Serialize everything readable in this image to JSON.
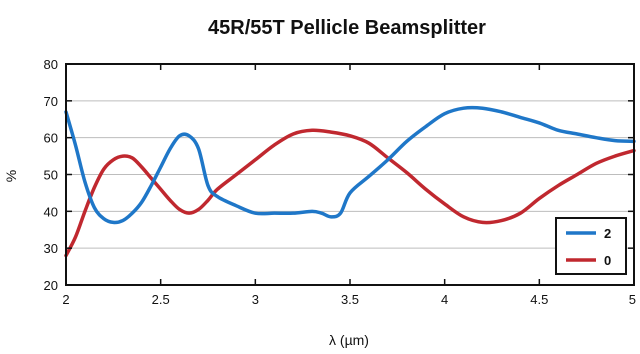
{
  "chart_data": {
    "type": "line",
    "title": "45R/55T Pellicle Beamsplitter",
    "xlabel": "λ (µm)",
    "ylabel": "%",
    "xlim": [
      2,
      5
    ],
    "ylim": [
      20,
      80
    ],
    "xticks": [
      "2",
      "2.5",
      "3",
      "3.5",
      "4",
      "4.5",
      "5"
    ],
    "xtick_values": [
      2,
      2.5,
      3,
      3.5,
      4,
      4.5,
      5
    ],
    "yticks": [
      "20",
      "30",
      "40",
      "50",
      "60",
      "70",
      "80"
    ],
    "ytick_values": [
      20,
      30,
      40,
      50,
      60,
      70,
      80
    ],
    "grid": "horizontal",
    "legend_position": "bottom-right",
    "series": [
      {
        "name": "2",
        "color": "#1f77c8",
        "x": [
          2.0,
          2.05,
          2.1,
          2.15,
          2.2,
          2.25,
          2.3,
          2.35,
          2.4,
          2.45,
          2.5,
          2.55,
          2.6,
          2.65,
          2.7,
          2.75,
          2.8,
          2.9,
          3.0,
          3.1,
          3.2,
          3.3,
          3.35,
          3.4,
          3.45,
          3.5,
          3.6,
          3.7,
          3.8,
          3.9,
          4.0,
          4.1,
          4.2,
          4.3,
          4.4,
          4.5,
          4.6,
          4.7,
          4.8,
          4.9,
          5.0
        ],
        "y": [
          67,
          58,
          48,
          41,
          38,
          37,
          37.5,
          39.5,
          42.5,
          47,
          52,
          57,
          60.5,
          60.5,
          57,
          47,
          44,
          41.5,
          39.5,
          39.5,
          39.5,
          40,
          39.5,
          38.5,
          39.5,
          45,
          49.5,
          54,
          59,
          63,
          66.5,
          68,
          68,
          67,
          65.5,
          64,
          62,
          61,
          60,
          59.2,
          59
        ]
      },
      {
        "name": "0",
        "color": "#c0282f",
        "x": [
          2.0,
          2.05,
          2.1,
          2.15,
          2.2,
          2.25,
          2.3,
          2.35,
          2.4,
          2.45,
          2.5,
          2.55,
          2.6,
          2.65,
          2.7,
          2.75,
          2.8,
          2.9,
          3.0,
          3.1,
          3.2,
          3.3,
          3.4,
          3.5,
          3.6,
          3.7,
          3.8,
          3.9,
          4.0,
          4.1,
          4.2,
          4.3,
          4.4,
          4.5,
          4.6,
          4.7,
          4.8,
          4.9,
          5.0
        ],
        "y": [
          28,
          33,
          40,
          46.5,
          51.5,
          54,
          55,
          54.5,
          52,
          49,
          46,
          43,
          40.5,
          39.5,
          40.5,
          43,
          46,
          50,
          54,
          58,
          61,
          62,
          61.5,
          60.5,
          58.5,
          54.5,
          50.5,
          46,
          42,
          38.5,
          37,
          37.5,
          39.5,
          43.5,
          47,
          50,
          53,
          55,
          56.5
        ]
      }
    ]
  }
}
